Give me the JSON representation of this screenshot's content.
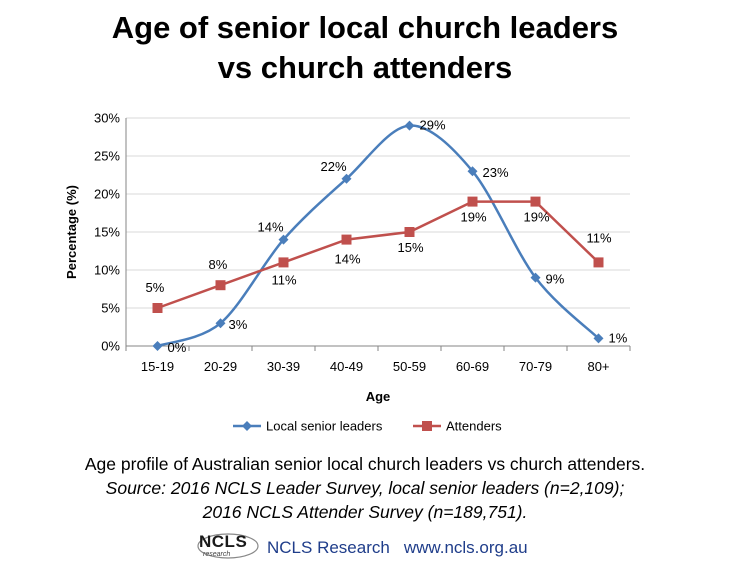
{
  "title_line1": "Age of senior local church leaders",
  "title_line2": "vs church attenders",
  "chart_data": {
    "type": "line",
    "categories": [
      "15-19",
      "20-29",
      "30-39",
      "40-49",
      "50-59",
      "60-69",
      "70-79",
      "80+"
    ],
    "series": [
      {
        "name": "Local senior leaders",
        "values": [
          0,
          3,
          14,
          22,
          29,
          23,
          9,
          1
        ],
        "color": "#4a7ebb",
        "marker": "diamond"
      },
      {
        "name": "Attenders",
        "values": [
          5,
          8,
          11,
          14,
          15,
          19,
          19,
          11
        ],
        "color": "#c0504d",
        "marker": "square"
      }
    ],
    "xlabel": "Age",
    "ylabel": "Percentage (%)",
    "ylim": [
      0,
      30
    ],
    "yticks": [
      0,
      5,
      10,
      15,
      20,
      25,
      30
    ],
    "grid": "horizontal",
    "legend": "bottom",
    "data_labels": true,
    "value_suffix": "%"
  },
  "caption_line1": "Age profile of Australian senior local church leaders vs church attenders.",
  "caption_line2": "Source: 2016 NCLS Leader Survey, local senior leaders (n=2,109);",
  "caption_line3": "2016 NCLS Attender Survey (n=189,751).",
  "footer": {
    "logo_text": "NCLS",
    "logo_sub": "research",
    "org": "NCLS Research",
    "website": "www.ncls.org.au"
  }
}
